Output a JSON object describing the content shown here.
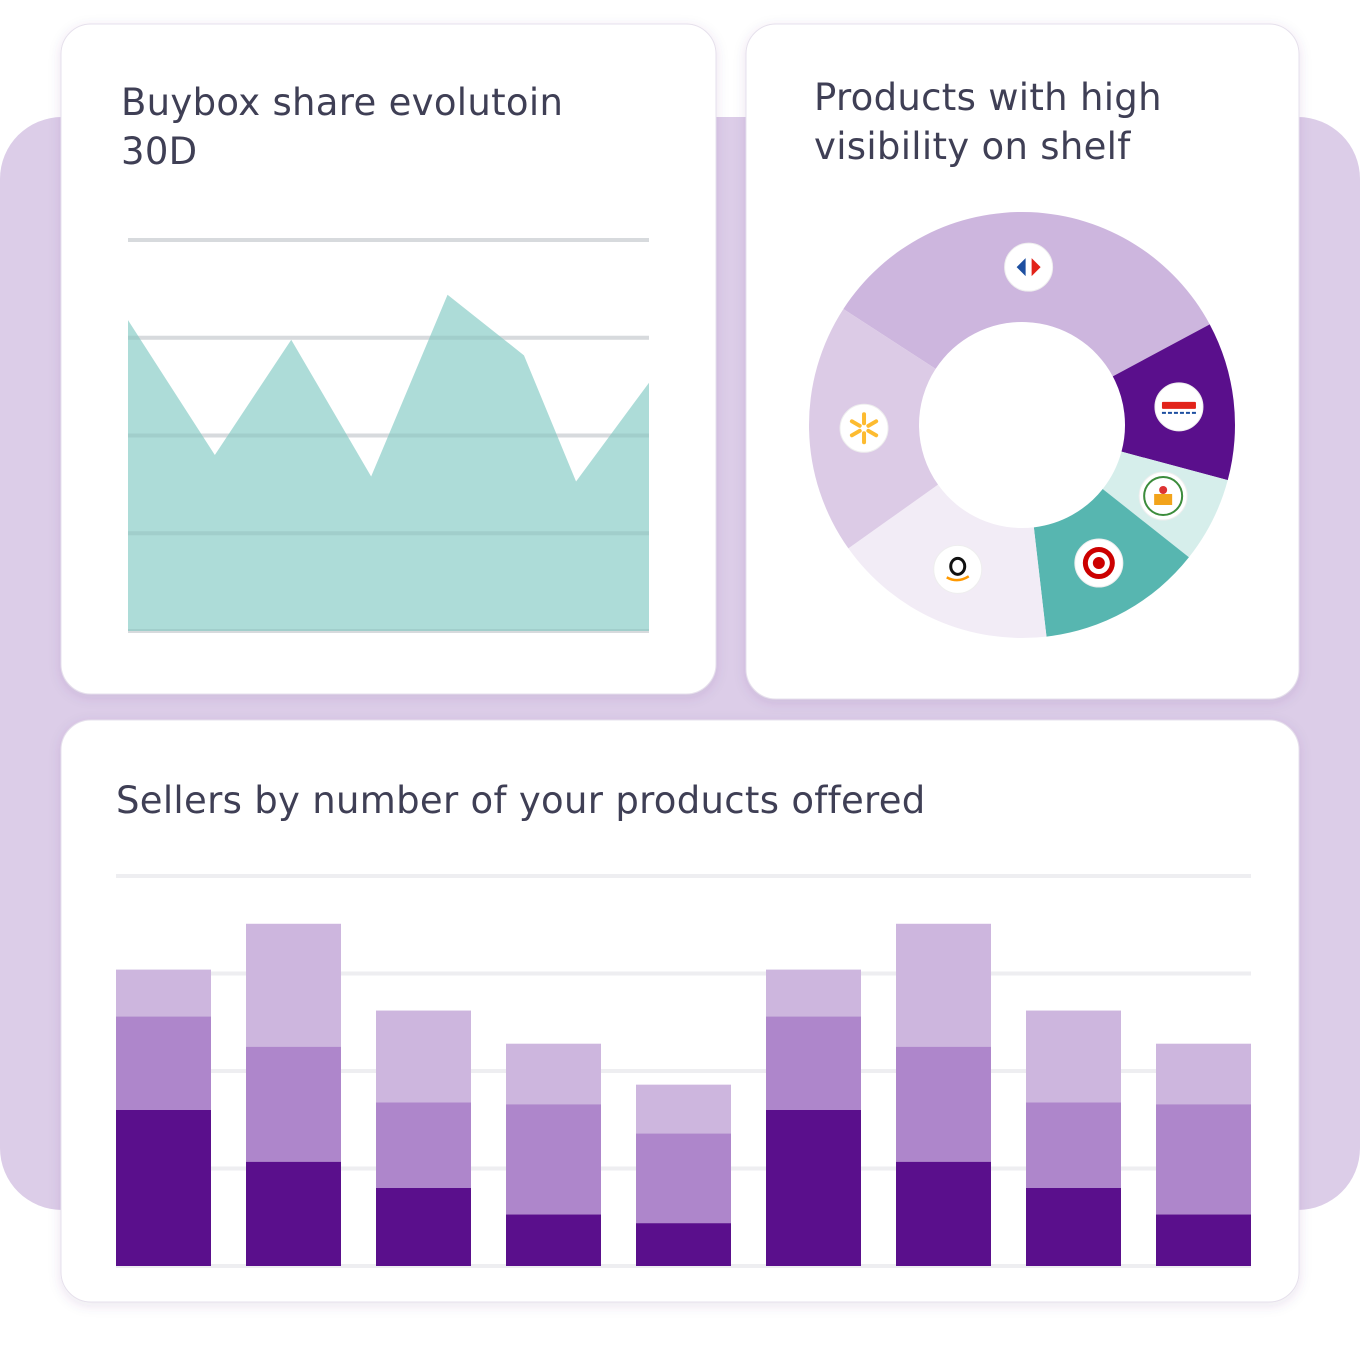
{
  "chart_data": [
    {
      "type": "area",
      "title": "Buybox share evolutoin 30D",
      "color": "#addcd8",
      "x": [
        0,
        5,
        9.4,
        14,
        18.4,
        22.8,
        25.8,
        30
      ],
      "values": [
        3.18,
        1.8,
        2.98,
        1.58,
        3.44,
        2.82,
        1.53,
        2.54
      ],
      "xlim": [
        0,
        30
      ],
      "ylim": [
        0,
        4
      ],
      "yticks": [
        0,
        1,
        2,
        3,
        4
      ],
      "grid": true
    },
    {
      "type": "donut",
      "title": "Products with high visibility on shelf",
      "values": [
        33,
        12,
        6.5,
        12.5,
        17,
        19
      ],
      "colors": [
        "#cdb6de",
        "#5a0f8c",
        "#d6eeeb",
        "#57b6b0",
        "#f2ecf6",
        "#dccbe6"
      ]
    },
    {
      "type": "stacked-bar",
      "title": "Sellers by number of your products offered",
      "series": [
        {
          "color": "#5a0f8c",
          "values": [
            1.6,
            1.07,
            0.8,
            0.53,
            0.44,
            1.6,
            1.07,
            0.8,
            0.53
          ]
        },
        {
          "color": "#ae86cb",
          "values": [
            0.96,
            1.18,
            0.88,
            1.13,
            0.92,
            0.96,
            1.18,
            0.88,
            1.13
          ]
        },
        {
          "color": "#cdb6de",
          "values": [
            0.48,
            1.26,
            0.94,
            0.62,
            0.5,
            0.48,
            1.26,
            0.94,
            0.62
          ]
        }
      ],
      "ylim": [
        0,
        4
      ],
      "yticks": [
        0,
        1,
        2,
        3,
        4
      ],
      "grid": true
    }
  ]
}
